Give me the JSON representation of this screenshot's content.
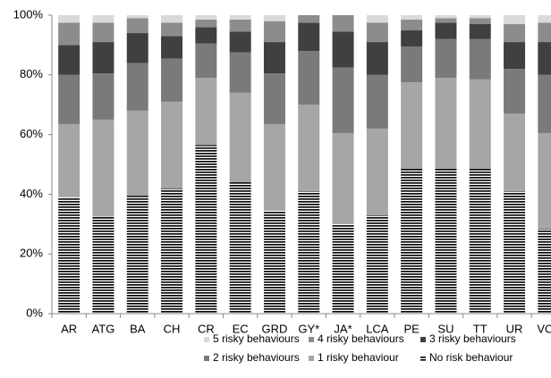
{
  "chart_data": {
    "type": "stacked_bar",
    "categories": [
      "AR",
      "ATG",
      "BA",
      "CH",
      "CR",
      "EC",
      "GRD",
      "GY*",
      "JA*",
      "LCA",
      "PE",
      "SU",
      "TT",
      "UR",
      "VCT"
    ],
    "series": [
      {
        "name": "5 risky behaviours",
        "color": "#d9d9d9",
        "values": [
          2.5,
          2.5,
          1,
          2.5,
          1.5,
          1.5,
          2,
          0,
          0,
          2.5,
          1.5,
          1,
          1,
          3,
          2.5
        ]
      },
      {
        "name": "4 risky behaviours",
        "color": "#8c8c8c",
        "values": [
          7.5,
          6.5,
          5,
          4.5,
          2.5,
          4,
          7,
          2.5,
          5.5,
          6.5,
          3.5,
          1.5,
          2,
          6,
          6.5
        ]
      },
      {
        "name": "3 risky behaviours",
        "color": "#404040",
        "values": [
          10,
          10.5,
          10,
          7.5,
          5.5,
          7,
          10.5,
          9.5,
          12,
          11,
          5.5,
          5.5,
          5,
          9,
          11
        ]
      },
      {
        "name": "2 risky behaviours",
        "color": "#7a7a7a",
        "values": [
          16.5,
          15.5,
          16,
          14.5,
          11.5,
          13.5,
          17,
          18,
          22,
          18,
          12,
          13,
          13.5,
          15,
          19.5
        ]
      },
      {
        "name": "1 risky behaviour",
        "color": "#a6a6a6",
        "values": [
          24.5,
          32.5,
          28.5,
          29,
          22.5,
          30,
          29,
          29,
          30.5,
          29,
          29,
          30.5,
          30,
          26,
          32
        ]
      },
      {
        "name": "No risk behaviour",
        "color": "#000000",
        "pattern": "horizontal-stripes",
        "values": [
          39,
          32.5,
          39.5,
          42,
          56.5,
          44,
          34.5,
          41,
          30,
          33,
          48.5,
          48.5,
          48.5,
          41,
          28.5
        ]
      }
    ],
    "ylim": [
      0,
      100
    ],
    "yticks": [
      {
        "value": 0,
        "label": "0%"
      },
      {
        "value": 20,
        "label": "20%"
      },
      {
        "value": 40,
        "label": "40%"
      },
      {
        "value": 60,
        "label": "60%"
      },
      {
        "value": 80,
        "label": "80%"
      },
      {
        "value": 100,
        "label": "100%"
      }
    ],
    "grid": false
  }
}
